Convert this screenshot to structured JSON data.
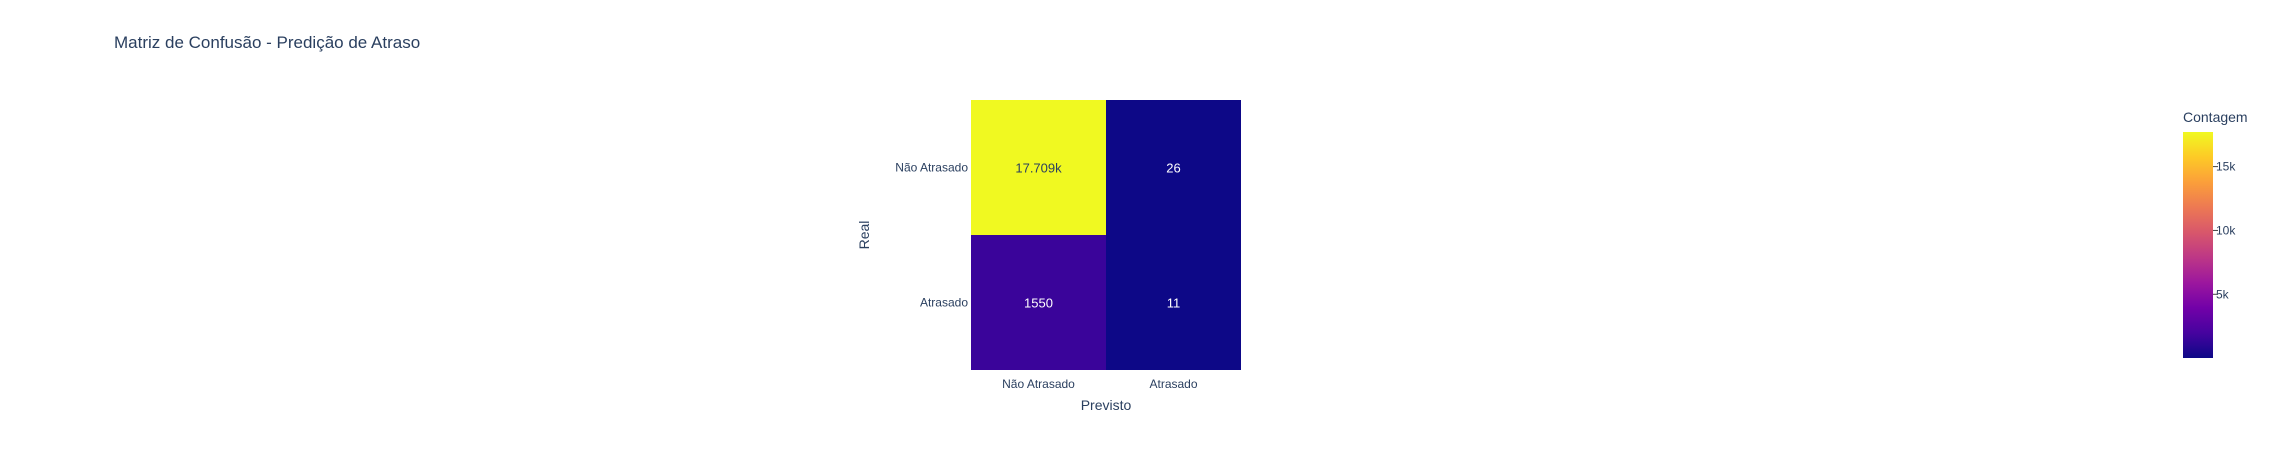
{
  "chart_data": {
    "type": "heatmap",
    "title": "Matriz de Confusão - Predição de Atraso",
    "xlabel": "Previsto",
    "ylabel": "Real",
    "x_categories": [
      "Não Atrasado",
      "Atrasado"
    ],
    "y_categories": [
      "Não Atrasado",
      "Atrasado"
    ],
    "z": [
      [
        17709,
        26
      ],
      [
        1550,
        11
      ]
    ],
    "cell_text": [
      [
        "17.709k",
        "26"
      ],
      [
        "1550",
        "11"
      ]
    ],
    "colorscale": "plasma",
    "colorbar": {
      "title": "Contagem",
      "range": [
        11,
        17709
      ],
      "ticks": [
        5000,
        10000,
        15000
      ],
      "tick_labels": [
        "5k",
        "10k",
        "15k"
      ]
    },
    "colors": {
      "text": "#2a3f5f",
      "cell_text_dark": "#2a3f5f",
      "cell_text_light": "#ffffff"
    }
  }
}
